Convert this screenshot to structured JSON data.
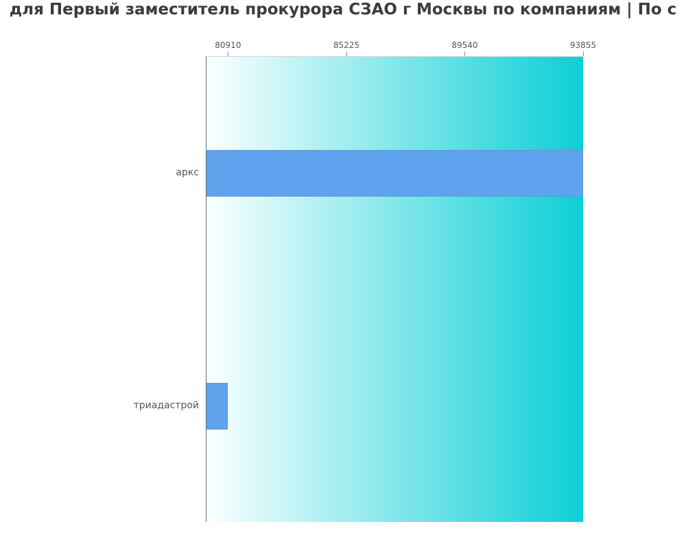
{
  "chart": {
    "title_visible": "для Первый заместитель прокурора СЗАО г Москвы по компаниям  | По с"
  },
  "chart_data": {
    "type": "bar",
    "orientation": "horizontal",
    "title": "для Первый заместитель прокурора СЗАО г Москвы по компаниям  | По с",
    "categories": [
      "аркс",
      "триадастрой"
    ],
    "values": [
      93855,
      80910
    ],
    "x_ticks": [
      80910,
      85225,
      89540,
      93855
    ],
    "xlim": [
      80100,
      93855
    ],
    "xlabel": "",
    "ylabel": "",
    "grid": false,
    "legend": false,
    "ticks_position": "top",
    "colors": {
      "bar": "#5fa3ef",
      "plot_gradient_left": "#fbffff",
      "plot_gradient_right": "#0ccfd6",
      "axis_line": "#6b6b6b",
      "tick_mark": "#8a8a8a",
      "tick_label": "#555555",
      "category_label": "#555555",
      "title": "#3c3c3c",
      "page_background": "#ffffff"
    }
  }
}
